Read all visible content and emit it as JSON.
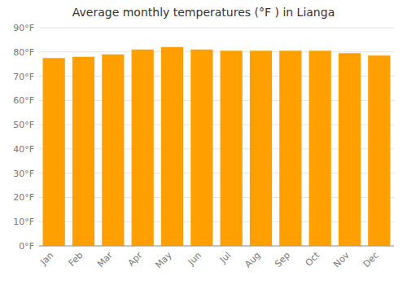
{
  "chart_data": {
    "type": "bar",
    "title": "Average monthly temperatures (°F ) in Lianga",
    "categories": [
      "Jan",
      "Feb",
      "Mar",
      "Apr",
      "May",
      "Jun",
      "Jul",
      "Aug",
      "Sep",
      "Oct",
      "Nov",
      "Dec"
    ],
    "values": [
      77.5,
      78.0,
      79.0,
      81.0,
      82.0,
      81.0,
      80.5,
      80.5,
      80.5,
      80.5,
      79.5,
      78.5
    ],
    "color": "#FFA000",
    "ylim": [
      0,
      90
    ],
    "yticks": [
      {
        "value": 0,
        "label": "0°F"
      },
      {
        "value": 10,
        "label": "10°F"
      },
      {
        "value": 20,
        "label": "20°F"
      },
      {
        "value": 30,
        "label": "30°F"
      },
      {
        "value": 40,
        "label": "40°F"
      },
      {
        "value": 50,
        "label": "50°F"
      },
      {
        "value": 60,
        "label": "60°F"
      },
      {
        "value": 70,
        "label": "70°F"
      },
      {
        "value": 80,
        "label": "80°F"
      },
      {
        "value": 90,
        "label": "90°F"
      }
    ],
    "grid": true
  }
}
